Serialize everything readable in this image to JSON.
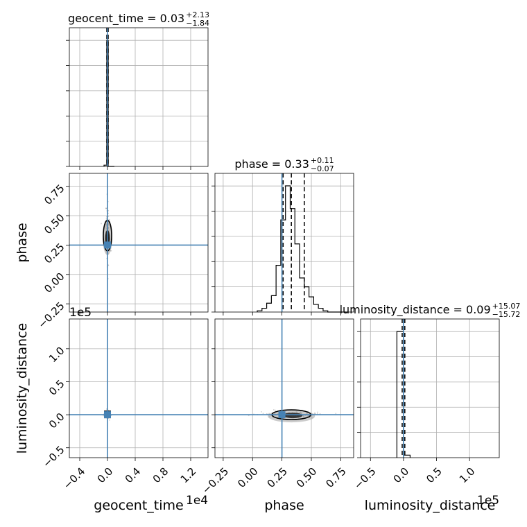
{
  "chart_data": {
    "type": "corner",
    "parameters": [
      "geocent_time",
      "phase",
      "luminosity_distance"
    ],
    "truths": {
      "geocent_time": 0.0,
      "phase": 0.25,
      "luminosity_distance": 0.0
    },
    "grid": true,
    "colors": {
      "hist": "#000000",
      "truth": "#4682b4",
      "points": "#7f7f7f",
      "grid": "#b0b0b0"
    },
    "titles": [
      {
        "param": "geocent_time",
        "label": "geocent_time",
        "median": "0.03",
        "plus": "+2.13",
        "minus": "−1.84"
      },
      {
        "param": "phase",
        "label": "phase",
        "median": "0.33",
        "plus": "+0.11",
        "minus": "−0.07"
      },
      {
        "param": "luminosity_distance",
        "label": "luminosity_distance",
        "median": "0.09",
        "plus": "+15.07",
        "minus": "−15.72"
      }
    ],
    "axes": {
      "geocent_time": {
        "range": [
          -0.55,
          1.45
        ],
        "ticks": [
          -0.4,
          0.0,
          0.4,
          0.8,
          1.2
        ],
        "tick_labels": [
          "−0.4",
          "0.0",
          "0.4",
          "0.8",
          "1.2"
        ],
        "offset": "1e4"
      },
      "phase": {
        "range": [
          -0.32,
          0.86
        ],
        "ticks": [
          -0.25,
          0.0,
          0.25,
          0.5,
          0.75
        ],
        "tick_labels": [
          "−0.25",
          "0.00",
          "0.25",
          "0.50",
          "0.75"
        ]
      },
      "luminosity_distance": {
        "range": [
          -0.65,
          1.45
        ],
        "ticks": [
          -0.5,
          0.0,
          0.5,
          1.0
        ],
        "tick_labels": [
          "−0.5",
          "0.0",
          "0.5",
          "1.0"
        ],
        "offset": "1e5"
      }
    },
    "histograms": {
      "geocent_time": {
        "edges": [
          -0.05,
          -0.01,
          0.01,
          0.07,
          0.1
        ],
        "counts": [
          0.01,
          1.0,
          0.0,
          0.0
        ]
      },
      "phase": {
        "edges": [
          0.04,
          0.08,
          0.12,
          0.16,
          0.2,
          0.24,
          0.28,
          0.32,
          0.36,
          0.4,
          0.44,
          0.48,
          0.52,
          0.56,
          0.6,
          0.64,
          0.68,
          0.72,
          0.76,
          0.8
        ],
        "counts": [
          0.01,
          0.03,
          0.07,
          0.13,
          0.37,
          0.73,
          1.0,
          0.82,
          0.54,
          0.27,
          0.2,
          0.12,
          0.06,
          0.03,
          0.01,
          0.0,
          0.0,
          0.0,
          0.0
        ]
      },
      "luminosity_distance": {
        "edges": [
          -0.1,
          0.0,
          0.1
        ],
        "counts": [
          1.0,
          0.02
        ]
      }
    },
    "quantiles": {
      "geocent_time": [
        -0.01,
        0.0,
        0.01
      ],
      "phase": [
        0.26,
        0.33,
        0.44
      ],
      "luminosity_distance": [
        -0.02,
        0.0,
        0.02
      ]
    }
  }
}
